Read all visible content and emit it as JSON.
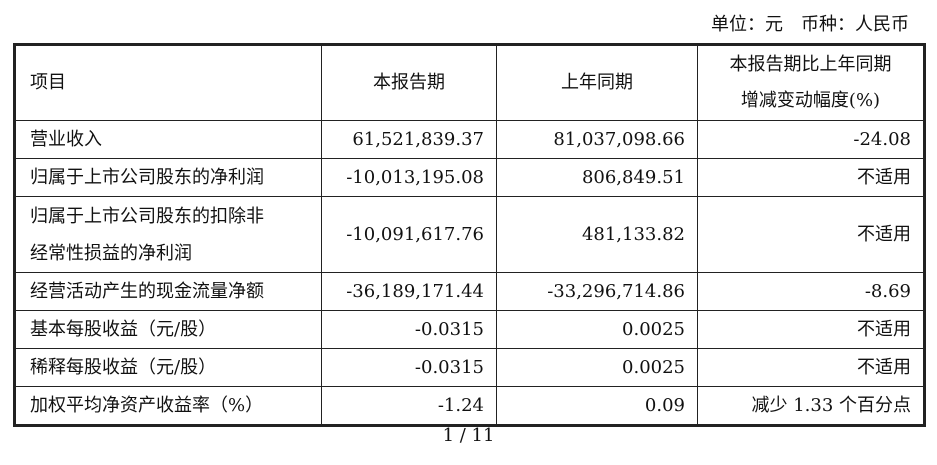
{
  "unit_note": "单位：元　币种：人民币",
  "table": {
    "headers": [
      "项目",
      "本报告期",
      "上年同期",
      "本报告期比上年同期",
      "增减变动幅度(%)"
    ],
    "rows": [
      {
        "item": "营业收入",
        "item2": "",
        "current": "61,521,839.37",
        "prior": "81,037,098.66",
        "change": "-24.08"
      },
      {
        "item": "归属于上市公司股东的净利润",
        "item2": "",
        "current": "-10,013,195.08",
        "prior": "806,849.51",
        "change": "不适用"
      },
      {
        "item": "归属于上市公司股东的扣除非",
        "item2": "经常性损益的净利润",
        "current": "-10,091,617.76",
        "prior": "481,133.82",
        "change": "不适用"
      },
      {
        "item": "经营活动产生的现金流量净额",
        "item2": "",
        "current": "-36,189,171.44",
        "prior": "-33,296,714.86",
        "change": "-8.69"
      },
      {
        "item": "基本每股收益（元/股）",
        "item2": "",
        "current": "-0.0315",
        "prior": "0.0025",
        "change": "不适用"
      },
      {
        "item": "稀释每股收益（元/股）",
        "item2": "",
        "current": "-0.0315",
        "prior": "0.0025",
        "change": "不适用"
      },
      {
        "item": "加权平均净资产收益率（%）",
        "item2": "",
        "current": "-1.24",
        "prior": "0.09",
        "change": "减少 1.33 个百分点"
      }
    ]
  },
  "page_number": "1 / 11"
}
